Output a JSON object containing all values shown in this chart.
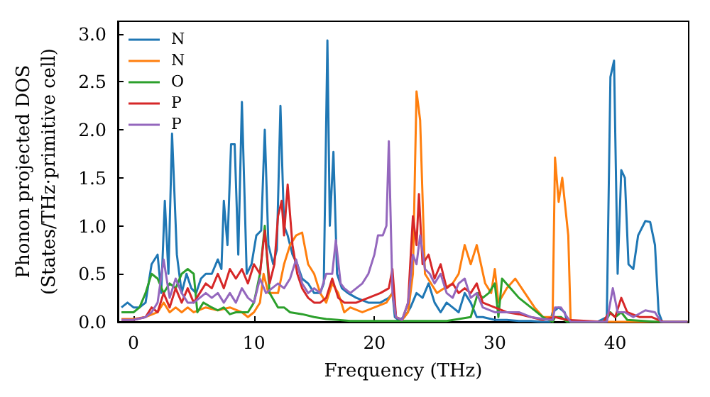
{
  "chart_data": {
    "type": "line",
    "xlabel": "Frequency (THz)",
    "ylabel": "Phonon projected DOS\n(States/THz·primitive cell)",
    "xlim": [
      -1.3,
      46.1
    ],
    "xticks": [
      0,
      10,
      20,
      30,
      40
    ],
    "ylim": [
      0,
      3.13
    ],
    "yticks": [
      {
        "value": 0,
        "label": "0.0"
      },
      0.5,
      {
        "value": 1,
        "label": "1.0"
      },
      1.5,
      {
        "value": 2,
        "label": "2.0"
      },
      2.5,
      {
        "value": 3,
        "label": "3.0"
      }
    ],
    "legend": "top left",
    "grid": false,
    "marker": "none",
    "line_style": "solid",
    "series": [
      {
        "name": "N",
        "color": "#1f77b4",
        "x": [
          -1,
          -0.5,
          0,
          0.5,
          1,
          1.5,
          2,
          2.3,
          2.6,
          2.9,
          3.2,
          3.6,
          4,
          4.4,
          4.8,
          5.2,
          5.6,
          6,
          6.5,
          7,
          7.3,
          7.5,
          7.8,
          8.1,
          8.4,
          8.7,
          9,
          9.4,
          9.8,
          10.2,
          10.6,
          10.9,
          11.2,
          11.6,
          11.9,
          12.2,
          12.5,
          12.8,
          13.2,
          13.6,
          14,
          14.5,
          15,
          15.5,
          15.8,
          16.1,
          16.3,
          16.6,
          16.9,
          17.3,
          17.8,
          18.5,
          19.5,
          20.5,
          21.2,
          21.5,
          21.7,
          22,
          22.5,
          23,
          23.5,
          24,
          24.5,
          25,
          25.5,
          26,
          26.5,
          27,
          27.5,
          28,
          28.5,
          29,
          30,
          31,
          32,
          33,
          34,
          34.6,
          34.8,
          35.3,
          35.8,
          36,
          38.5,
          39.3,
          39.6,
          39.9,
          40.2,
          40.5,
          40.8,
          41.1,
          41.5,
          41.9,
          42.5,
          42.9,
          43.3,
          43.6,
          43.9,
          46
        ],
        "values": [
          0.15,
          0.2,
          0.15,
          0.15,
          0.2,
          0.6,
          0.7,
          0.3,
          1.26,
          0.5,
          1.96,
          0.7,
          0.3,
          0.5,
          0.35,
          0.3,
          0.45,
          0.5,
          0.5,
          0.65,
          0.55,
          1.26,
          0.8,
          1.85,
          1.85,
          0.7,
          2.29,
          0.5,
          0.6,
          0.9,
          0.95,
          2.0,
          0.8,
          0.6,
          0.75,
          2.25,
          1.0,
          0.9,
          0.7,
          0.6,
          0.45,
          0.4,
          0.3,
          0.3,
          0.4,
          2.93,
          1.0,
          1.77,
          0.5,
          0.35,
          0.3,
          0.25,
          0.2,
          0.2,
          0.25,
          0.3,
          0.05,
          0.02,
          0.05,
          0.15,
          0.3,
          0.25,
          0.4,
          0.2,
          0.1,
          0.2,
          0.15,
          0.1,
          0.3,
          0.2,
          0.05,
          0.05,
          0.02,
          0.02,
          0.01,
          0.01,
          0,
          0,
          0.1,
          0.15,
          0.1,
          0,
          0,
          0.05,
          2.55,
          2.72,
          0.5,
          1.58,
          1.5,
          0.6,
          0.55,
          0.9,
          1.05,
          1.04,
          0.8,
          0.1,
          0,
          0
        ]
      },
      {
        "name": "N",
        "color": "#ff7f0e",
        "x": [
          -1,
          0,
          1,
          2,
          2.5,
          3,
          3.5,
          4,
          4.5,
          5,
          6,
          7,
          8,
          9,
          9.5,
          10,
          10.5,
          10.8,
          11.2,
          12,
          12.5,
          13,
          13.5,
          14,
          14.5,
          15,
          15.5,
          16,
          16.5,
          17,
          17.5,
          18,
          19,
          20,
          21,
          21.5,
          21.8,
          22.3,
          22.8,
          23.2,
          23.5,
          23.8,
          24.2,
          24.7,
          25.2,
          25.8,
          26.5,
          27,
          27.5,
          28,
          28.5,
          29.2,
          29.7,
          30,
          30.3,
          31,
          31.7,
          32.5,
          33.3,
          34,
          34.8,
          35,
          35.3,
          35.6,
          36.1,
          36.3,
          46
        ],
        "values": [
          0.03,
          0.03,
          0.05,
          0.1,
          0.2,
          0.1,
          0.15,
          0.1,
          0.15,
          0.1,
          0.15,
          0.12,
          0.15,
          0.1,
          0.05,
          0.1,
          0.2,
          0.5,
          0.3,
          0.3,
          0.6,
          0.8,
          0.9,
          0.93,
          0.6,
          0.5,
          0.3,
          0.2,
          0.4,
          0.3,
          0.1,
          0.15,
          0.1,
          0.15,
          0.2,
          0.3,
          0.05,
          0.02,
          0.1,
          0.5,
          2.4,
          2.1,
          0.5,
          0.4,
          0.3,
          0.35,
          0.4,
          0.5,
          0.8,
          0.6,
          0.8,
          0.4,
          0.3,
          0.55,
          0.2,
          0.35,
          0.45,
          0.3,
          0.15,
          0.05,
          0.05,
          1.71,
          1.25,
          1.5,
          0.9,
          0,
          0
        ]
      },
      {
        "name": "O",
        "color": "#2ca02c",
        "x": [
          -1,
          0,
          0.5,
          1,
          1.5,
          2,
          2.5,
          3,
          3.5,
          4,
          4.5,
          5,
          5.3,
          5.8,
          6.5,
          7,
          7.5,
          8,
          8.5,
          9,
          9.5,
          10,
          10.5,
          10.9,
          11.3,
          12,
          12.5,
          13,
          14,
          15,
          16,
          17,
          18,
          20,
          22,
          24,
          26,
          28,
          28.6,
          29,
          29.5,
          30,
          30.3,
          30.6,
          31.3,
          32,
          33,
          34,
          34.8,
          35,
          35.5,
          36,
          39.2,
          39.6,
          40,
          40.5,
          41,
          43.5,
          46
        ],
        "values": [
          0.1,
          0.1,
          0.15,
          0.3,
          0.5,
          0.45,
          0.3,
          0.4,
          0.35,
          0.5,
          0.55,
          0.5,
          0.1,
          0.2,
          0.15,
          0.12,
          0.15,
          0.08,
          0.1,
          0.1,
          0.1,
          0.2,
          0.5,
          1.0,
          0.3,
          0.15,
          0.15,
          0.1,
          0.08,
          0.05,
          0.03,
          0.02,
          0.01,
          0.01,
          0.01,
          0.01,
          0.01,
          0.05,
          0.3,
          0.25,
          0.3,
          0.4,
          0.05,
          0.45,
          0.35,
          0.25,
          0.15,
          0.05,
          0,
          0.05,
          0.05,
          0,
          0,
          0.1,
          0.05,
          0.1,
          0.02,
          0,
          0
        ]
      },
      {
        "name": "P",
        "color": "#d62728",
        "x": [
          -1,
          0,
          1,
          1.5,
          2,
          2.5,
          3,
          3.5,
          4,
          4.5,
          5,
          5.5,
          6,
          6.5,
          7,
          7.5,
          8,
          8.5,
          9,
          9.5,
          10,
          10.5,
          10.9,
          11.3,
          11.7,
          12,
          12.3,
          12.5,
          12.8,
          13.2,
          13.6,
          14,
          14.5,
          15,
          15.5,
          16,
          16.5,
          17,
          17.5,
          18.5,
          19.5,
          20.5,
          21.2,
          21.5,
          21.8,
          22.3,
          22.8,
          23.2,
          23.5,
          23.7,
          24,
          24.5,
          25,
          25.5,
          26,
          26.5,
          27,
          27.5,
          28,
          28.5,
          29,
          30,
          31,
          32,
          33,
          34,
          35,
          36,
          39,
          39.5,
          40,
          40.5,
          41,
          42,
          43,
          44,
          46
        ],
        "values": [
          0.02,
          0.02,
          0.05,
          0.15,
          0.1,
          0.3,
          0.15,
          0.35,
          0.2,
          0.35,
          0.2,
          0.3,
          0.4,
          0.35,
          0.5,
          0.35,
          0.55,
          0.45,
          0.55,
          0.4,
          0.6,
          0.5,
          0.95,
          0.4,
          0.6,
          1.1,
          1.26,
          0.9,
          1.43,
          0.8,
          0.5,
          0.35,
          0.25,
          0.2,
          0.2,
          0.25,
          0.45,
          0.25,
          0.2,
          0.2,
          0.25,
          0.3,
          0.35,
          0.55,
          0.05,
          0.02,
          0.2,
          1.1,
          0.8,
          1.33,
          0.6,
          0.7,
          0.45,
          0.6,
          0.35,
          0.4,
          0.3,
          0.35,
          0.3,
          0.4,
          0.2,
          0.15,
          0.1,
          0.08,
          0.05,
          0.02,
          0.05,
          0.02,
          0,
          0.1,
          0.05,
          0.25,
          0.1,
          0.05,
          0.05,
          0,
          0
        ]
      },
      {
        "name": "P",
        "color": "#9467bd",
        "x": [
          -1,
          0,
          1,
          1.5,
          2,
          2.5,
          3,
          3.5,
          4,
          4.5,
          5,
          5.5,
          6,
          6.5,
          7,
          7.5,
          8,
          8.5,
          9,
          9.5,
          10,
          10.5,
          11,
          11.5,
          12,
          12.5,
          13,
          13.5,
          14,
          14.5,
          15,
          15.5,
          16,
          16.5,
          16.8,
          17.2,
          17.5,
          18,
          18.5,
          19,
          19.5,
          20,
          20.3,
          20.7,
          21,
          21.2,
          21.5,
          21.8,
          22.3,
          22.8,
          23.2,
          23.5,
          23.8,
          24.2,
          24.6,
          25,
          25.5,
          26,
          26.5,
          27,
          27.5,
          28,
          28.5,
          29,
          30,
          31,
          32,
          33,
          34,
          34.8,
          35,
          35.5,
          36,
          36.3,
          39.3,
          39.8,
          40.2,
          40.8,
          41.5,
          42.5,
          43.3,
          43.8,
          46
        ],
        "values": [
          0.02,
          0.02,
          0.05,
          0.1,
          0.2,
          0.65,
          0.25,
          0.45,
          0.3,
          0.2,
          0.2,
          0.25,
          0.3,
          0.25,
          0.3,
          0.2,
          0.3,
          0.2,
          0.35,
          0.25,
          0.2,
          0.45,
          0.3,
          0.35,
          0.4,
          0.35,
          0.45,
          0.65,
          0.4,
          0.3,
          0.35,
          0.3,
          0.5,
          0.5,
          0.85,
          0.4,
          0.35,
          0.3,
          0.35,
          0.4,
          0.5,
          0.7,
          0.9,
          0.9,
          1.0,
          1.88,
          0.3,
          0.05,
          0.02,
          0.2,
          0.7,
          0.6,
          0.9,
          0.55,
          0.5,
          0.4,
          0.5,
          0.3,
          0.25,
          0.4,
          0.45,
          0.25,
          0.3,
          0.15,
          0.1,
          0.1,
          0.1,
          0.05,
          0.03,
          0.02,
          0.15,
          0.15,
          0.05,
          0,
          0,
          0.35,
          0.1,
          0.1,
          0.05,
          0.12,
          0.1,
          0,
          0
        ]
      }
    ]
  }
}
